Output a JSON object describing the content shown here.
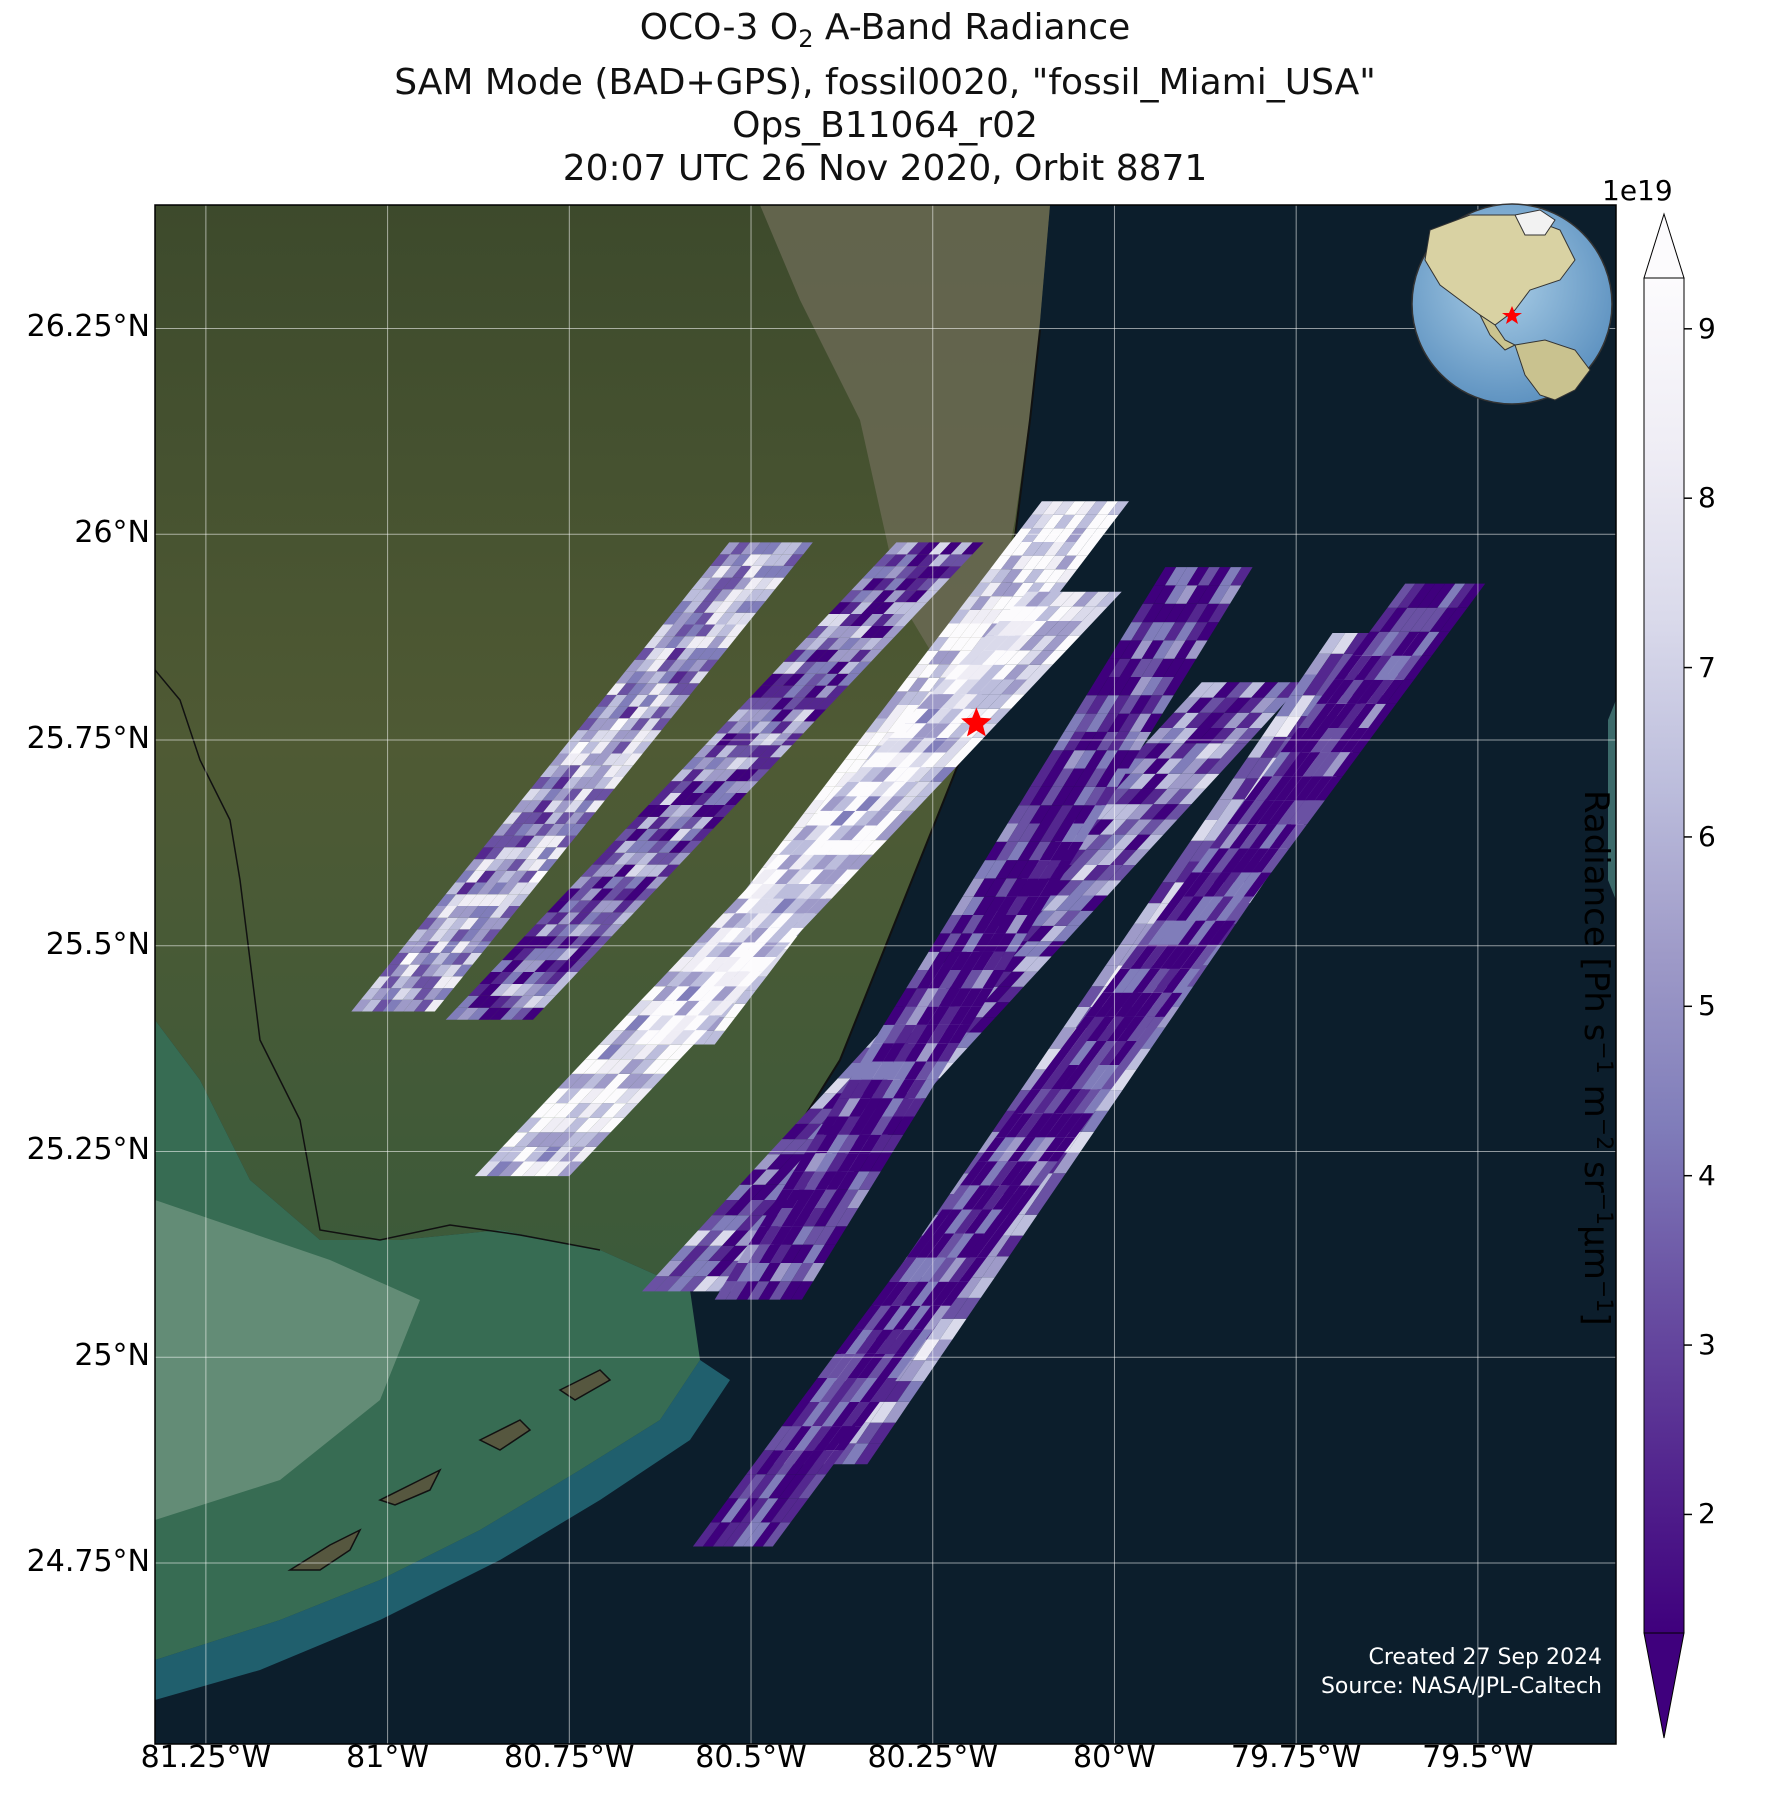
{
  "title": {
    "line1_prefix": "OCO-3 O",
    "line1_sub": "2",
    "line1_suffix": " A-Band Radiance",
    "line2": "SAM Mode (BAD+GPS), fossil0020, \"fossil_Miami_USA\"",
    "line3": "Ops_B11064_r02",
    "line4": "20:07 UTC 26 Nov 2020, Orbit 8871"
  },
  "map": {
    "projection": "lat-lon",
    "lon_range": [
      -81.32,
      -79.31
    ],
    "lat_range": [
      24.53,
      26.4
    ],
    "lat_ticks": [
      {
        "value": 26.25,
        "label": "26.25°N"
      },
      {
        "value": 26.0,
        "label": "26°N"
      },
      {
        "value": 25.75,
        "label": "25.75°N"
      },
      {
        "value": 25.5,
        "label": "25.5°N"
      },
      {
        "value": 25.25,
        "label": "25.25°N"
      },
      {
        "value": 25.0,
        "label": "25°N"
      },
      {
        "value": 24.75,
        "label": "24.75°N"
      }
    ],
    "lon_ticks": [
      {
        "value": -81.25,
        "label": "81.25°W"
      },
      {
        "value": -81.0,
        "label": "81°W"
      },
      {
        "value": -80.75,
        "label": "80.75°W"
      },
      {
        "value": -80.5,
        "label": "80.5°W"
      },
      {
        "value": -80.25,
        "label": "80.25°W"
      },
      {
        "value": -80.0,
        "label": "80°W"
      },
      {
        "value": -79.75,
        "label": "79.75°W"
      },
      {
        "value": -79.5,
        "label": "79.5°W"
      }
    ],
    "gridlines": true,
    "target_marker": {
      "lon": -80.19,
      "lat": 25.77,
      "color": "#ff0000",
      "symbol": "star"
    },
    "background": "satellite imagery (land, Everglades, Florida Keys, ocean)",
    "inset_globe": {
      "position": "top-right",
      "marker_color": "#ff0000"
    }
  },
  "colorbar": {
    "label_main": "Radiance [Ph s",
    "multiplier": "1e19",
    "vmin": 1.3,
    "vmax": 9.3,
    "ticks": [
      "2",
      "3",
      "4",
      "5",
      "6",
      "7",
      "8",
      "9"
    ],
    "colors": [
      "#3f007d",
      "#54278f",
      "#6a51a3",
      "#807dba",
      "#9e9ac8",
      "#bcbddc",
      "#dadaeb",
      "#efedf5",
      "#fcfbfd"
    ],
    "extend": "both"
  },
  "credit": {
    "created": "Created 27 Sep 2024",
    "source": "Source: NASA/JPL-Caltech"
  }
}
